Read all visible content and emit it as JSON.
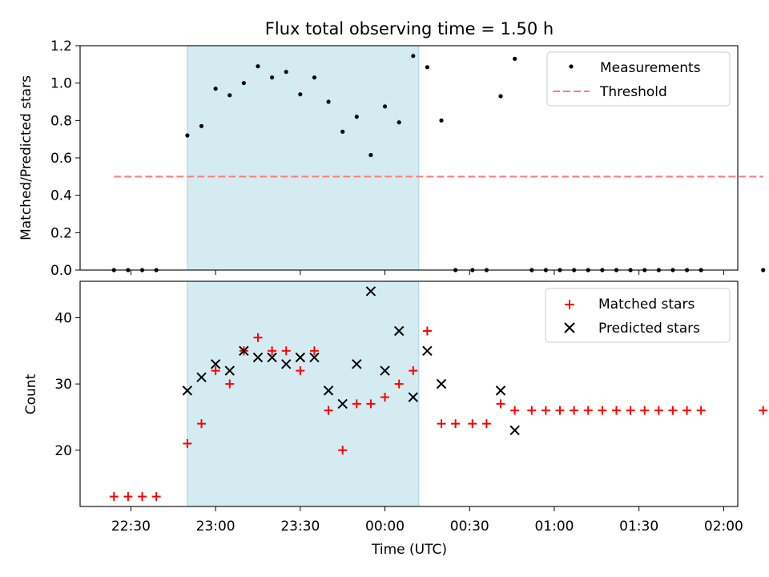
{
  "title": "Flux total observing time = 1.50 h",
  "x_axis": {
    "label": "Time (UTC)",
    "range": [
      "22:12",
      "02:05"
    ],
    "ticks": [
      "22:30",
      "23:00",
      "23:30",
      "00:00",
      "00:30",
      "01:00",
      "01:30",
      "02:00"
    ]
  },
  "chart_data": [
    {
      "type": "scatter",
      "panel": "top",
      "ylabel": "Matched/Predicted stars",
      "ylim": [
        0,
        1.2
      ],
      "yticks": [
        "0.0",
        "0.2",
        "0.4",
        "0.6",
        "0.8",
        "1.0",
        "1.2"
      ],
      "observing_window": [
        "22:50",
        "00:12"
      ],
      "legend_position": "upper right",
      "series": [
        {
          "name": "Measurements",
          "points": [
            [
              "22:24",
              0
            ],
            [
              "22:29",
              0
            ],
            [
              "22:34",
              0
            ],
            [
              "22:39",
              0
            ],
            [
              "22:50",
              0.72
            ],
            [
              "22:55",
              0.77
            ],
            [
              "23:00",
              0.97
            ],
            [
              "23:05",
              0.935
            ],
            [
              "23:10",
              1.0
            ],
            [
              "23:15",
              1.09
            ],
            [
              "23:20",
              1.03
            ],
            [
              "23:25",
              1.06
            ],
            [
              "23:30",
              0.94
            ],
            [
              "23:35",
              1.03
            ],
            [
              "23:40",
              0.9
            ],
            [
              "23:45",
              0.74
            ],
            [
              "23:50",
              0.82
            ],
            [
              "23:55",
              0.615
            ],
            [
              "00:00",
              0.875
            ],
            [
              "00:05",
              0.79
            ],
            [
              "00:10",
              1.145
            ],
            [
              "00:15",
              1.085
            ],
            [
              "00:20",
              0.8
            ],
            [
              "00:25",
              0
            ],
            [
              "00:31",
              0
            ],
            [
              "00:36",
              0
            ],
            [
              "00:41",
              0.93
            ],
            [
              "00:46",
              1.13
            ],
            [
              "00:52",
              0
            ],
            [
              "00:57",
              0
            ],
            [
              "01:02",
              0
            ],
            [
              "01:07",
              0
            ],
            [
              "01:12",
              0
            ],
            [
              "01:17",
              0
            ],
            [
              "01:22",
              0
            ],
            [
              "01:27",
              0
            ],
            [
              "01:32",
              0
            ],
            [
              "01:37",
              0
            ],
            [
              "01:42",
              0
            ],
            [
              "01:47",
              0
            ],
            [
              "01:52",
              0
            ],
            [
              "02:14",
              0
            ]
          ]
        },
        {
          "name": "Threshold",
          "value": 0.5,
          "x_range": [
            "22:24",
            "02:14"
          ]
        }
      ]
    },
    {
      "type": "scatter",
      "panel": "bottom",
      "ylabel": "Count",
      "ylim": [
        11.5,
        45.5
      ],
      "yticks": [
        "20",
        "30",
        "40"
      ],
      "observing_window": [
        "22:50",
        "00:12"
      ],
      "legend_position": "upper right",
      "series": [
        {
          "name": "Matched stars",
          "points": [
            [
              "22:24",
              13
            ],
            [
              "22:29",
              13
            ],
            [
              "22:34",
              13
            ],
            [
              "22:39",
              13
            ],
            [
              "22:50",
              21
            ],
            [
              "22:55",
              24
            ],
            [
              "23:00",
              32
            ],
            [
              "23:05",
              30
            ],
            [
              "23:10",
              35
            ],
            [
              "23:15",
              37
            ],
            [
              "23:20",
              35
            ],
            [
              "23:25",
              35
            ],
            [
              "23:30",
              32
            ],
            [
              "23:35",
              35
            ],
            [
              "23:40",
              26
            ],
            [
              "23:45",
              20
            ],
            [
              "23:50",
              27
            ],
            [
              "23:55",
              27
            ],
            [
              "00:00",
              28
            ],
            [
              "00:05",
              30
            ],
            [
              "00:10",
              32
            ],
            [
              "00:15",
              38
            ],
            [
              "00:20",
              24
            ],
            [
              "00:25",
              24
            ],
            [
              "00:31",
              24
            ],
            [
              "00:36",
              24
            ],
            [
              "00:41",
              27
            ],
            [
              "00:46",
              26
            ],
            [
              "00:52",
              26
            ],
            [
              "00:57",
              26
            ],
            [
              "01:02",
              26
            ],
            [
              "01:07",
              26
            ],
            [
              "01:12",
              26
            ],
            [
              "01:17",
              26
            ],
            [
              "01:22",
              26
            ],
            [
              "01:27",
              26
            ],
            [
              "01:32",
              26
            ],
            [
              "01:37",
              26
            ],
            [
              "01:42",
              26
            ],
            [
              "01:47",
              26
            ],
            [
              "01:52",
              26
            ],
            [
              "02:14",
              26
            ]
          ]
        },
        {
          "name": "Predicted stars",
          "points": [
            [
              "22:50",
              29
            ],
            [
              "22:55",
              31
            ],
            [
              "23:00",
              33
            ],
            [
              "23:05",
              32
            ],
            [
              "23:10",
              35
            ],
            [
              "23:15",
              34
            ],
            [
              "23:20",
              34
            ],
            [
              "23:25",
              33
            ],
            [
              "23:30",
              34
            ],
            [
              "23:35",
              34
            ],
            [
              "23:40",
              29
            ],
            [
              "23:45",
              27
            ],
            [
              "23:50",
              33
            ],
            [
              "23:55",
              44
            ],
            [
              "00:00",
              32
            ],
            [
              "00:05",
              38
            ],
            [
              "00:10",
              28
            ],
            [
              "00:15",
              35
            ],
            [
              "00:20",
              30
            ],
            [
              "00:41",
              29
            ],
            [
              "00:46",
              23
            ]
          ]
        }
      ]
    }
  ],
  "colors": {
    "measurement": "#000000",
    "threshold": "#ff7b7b",
    "matched": "#ff0000",
    "predicted": "#000000",
    "window": "#d4ebf1",
    "window_edge": "#a6d3e0"
  }
}
